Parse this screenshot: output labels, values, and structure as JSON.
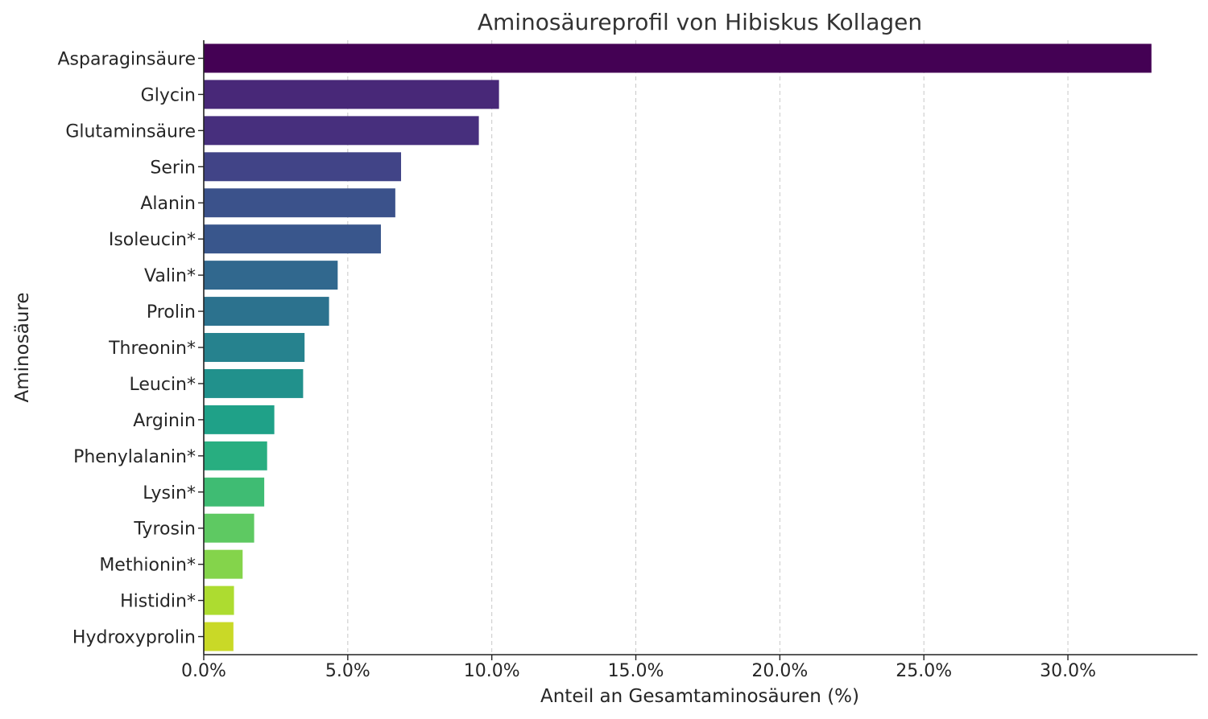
{
  "chart_data": {
    "type": "bar",
    "orientation": "horizontal",
    "title": "Aminosäureprofil von Hibiskus Kollagen",
    "xlabel": "Anteil an Gesamtaminosäuren (%)",
    "ylabel": "Aminosäure",
    "xlim": [
      0,
      34.5
    ],
    "xticks": [
      0,
      5,
      10,
      15,
      20,
      25,
      30
    ],
    "xtick_labels": [
      "0.0%",
      "5.0%",
      "10.0%",
      "15.0%",
      "20.0%",
      "25.0%",
      "30.0%"
    ],
    "grid": "x-axis, dashed",
    "colormap": "viridis",
    "categories": [
      "Asparaginsäure",
      "Glycin",
      "Glutaminsäure",
      "Serin",
      "Alanin",
      "Isoleucin*",
      "Valin*",
      "Prolin",
      "Threonin*",
      "Leucin*",
      "Arginin",
      "Phenylalanin*",
      "Lysin*",
      "Tyrosin",
      "Methionin*",
      "Histidin*",
      "Hydroxyprolin"
    ],
    "values": [
      32.9,
      10.25,
      9.55,
      6.85,
      6.65,
      6.15,
      4.65,
      4.35,
      3.5,
      3.45,
      2.45,
      2.2,
      2.1,
      1.75,
      1.35,
      1.05,
      1.03
    ],
    "colors": [
      "#440154",
      "#482878",
      "#472f7d",
      "#414487",
      "#3b528b",
      "#39568c",
      "#31688e",
      "#2c728e",
      "#26828e",
      "#21918c",
      "#1fa188",
      "#28ae80",
      "#3fbc73",
      "#5ec962",
      "#84d44b",
      "#addc30",
      "#c9d927"
    ]
  }
}
